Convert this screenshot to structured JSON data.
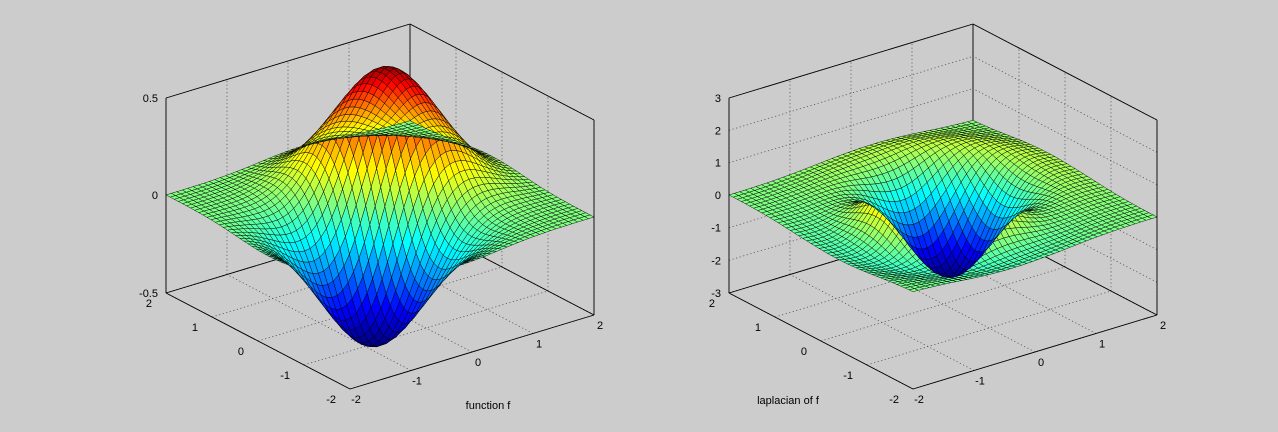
{
  "chart_data": [
    {
      "type": "surface",
      "function": "f",
      "title": "",
      "xlabel": "function f",
      "ylabel": "",
      "zlabel": "",
      "x_range": [
        -2,
        2
      ],
      "y_range": [
        -2,
        2
      ],
      "z_range": [
        -0.5,
        0.5
      ],
      "x_ticks": [
        "-2",
        "-1",
        "0",
        "1",
        "2"
      ],
      "y_ticks": [
        "-2",
        "-1",
        "0",
        "1",
        "2"
      ],
      "z_ticks": [
        "-0.5",
        "0",
        "0.5"
      ],
      "z_peak": 0.43,
      "z_trough": -0.43,
      "grid": true,
      "colormap": "jet"
    },
    {
      "type": "surface",
      "function": "laplacian of f",
      "title": "",
      "xlabel": "laplacian of f",
      "ylabel": "",
      "zlabel": "",
      "x_range": [
        -2,
        2
      ],
      "y_range": [
        -2,
        2
      ],
      "z_range": [
        -3,
        3
      ],
      "x_ticks": [
        "-2",
        "-1",
        "0",
        "1",
        "2"
      ],
      "y_ticks": [
        "-2",
        "-1",
        "0",
        "1",
        "2"
      ],
      "z_ticks": [
        "-3",
        "-2",
        "-1",
        "0",
        "1",
        "2",
        "3"
      ],
      "z_peak": 2.1,
      "z_trough": -2.8,
      "grid": true,
      "colormap": "jet"
    }
  ]
}
